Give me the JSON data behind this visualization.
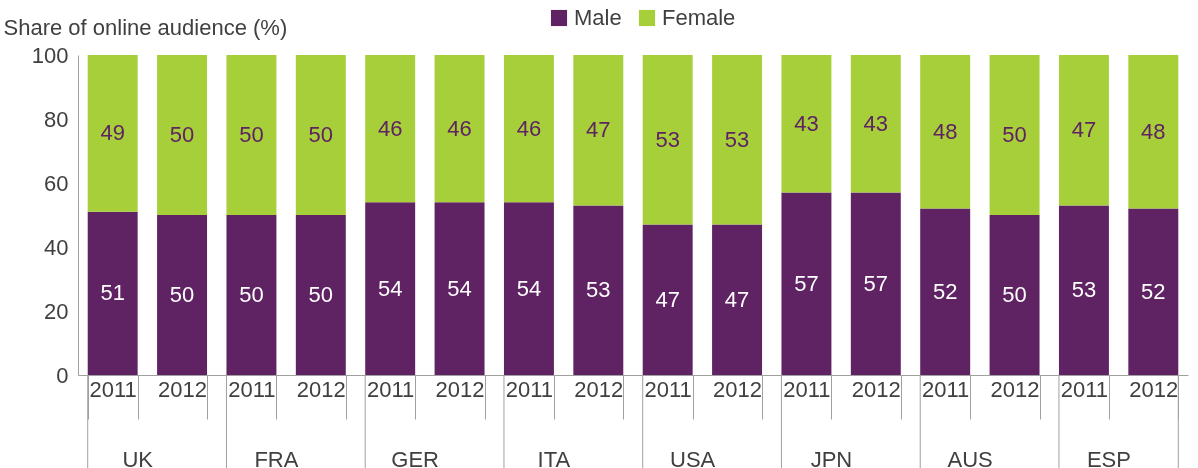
{
  "chart_data": {
    "type": "bar",
    "stacked": true,
    "ylabel": "Share of online audience (%)",
    "categories": [
      "2011",
      "2012",
      "2011",
      "2012",
      "2011",
      "2012",
      "2011",
      "2012",
      "2011",
      "2012",
      "2011",
      "2012",
      "2011",
      "2012",
      "2011",
      "2012"
    ],
    "series": [
      {
        "name": "Male",
        "color": "#5f2262",
        "values": [
          51,
          50,
          50,
          50,
          54,
          54,
          54,
          53,
          47,
          47,
          57,
          57,
          52,
          50,
          53,
          52
        ]
      },
      {
        "name": "Female",
        "color": "#a6cf3a",
        "values": [
          49,
          50,
          50,
          50,
          46,
          46,
          46,
          47,
          53,
          53,
          43,
          43,
          48,
          50,
          47,
          48
        ]
      }
    ],
    "annotations": [
      "UK",
      "FRA",
      "GER",
      "ITA",
      "USA",
      "JPN",
      "AUS",
      "ESP"
    ],
    "ylim": [
      0,
      100
    ],
    "yticks": [
      0,
      20,
      40,
      60,
      80,
      100
    ],
    "grid": false,
    "legend": "top",
    "data_labels": true
  }
}
